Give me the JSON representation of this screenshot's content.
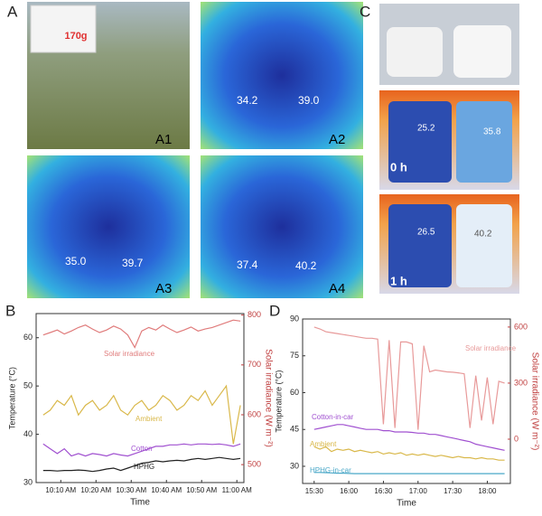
{
  "figure": {
    "panel_labels": {
      "a": "A",
      "b": "B",
      "c": "C",
      "d": "D"
    },
    "a1": {
      "label": "A1",
      "weight": "170g"
    },
    "a2": {
      "label": "A2",
      "readings": [
        "34.2",
        "39.0"
      ]
    },
    "a3": {
      "label": "A3",
      "readings": [
        "35.0",
        "39.7"
      ]
    },
    "a4": {
      "label": "A4",
      "readings": [
        "37.4",
        "40.2"
      ]
    },
    "c": {
      "images": [
        {
          "label": "0 h",
          "readings": [
            "25.2",
            "35.8"
          ]
        },
        {
          "label": "1 h",
          "readings": [
            "26.5",
            "40.2"
          ]
        }
      ]
    }
  },
  "chart_data": [
    {
      "type": "line",
      "x_label": "Time",
      "y_label": "Temperature (°C)",
      "y2_label": "Solar irradiance (W m⁻²)",
      "x": [
        605,
        607,
        609,
        611,
        613,
        615,
        617,
        619,
        621,
        623,
        625,
        627,
        629,
        631,
        633,
        635,
        637,
        639,
        641,
        643,
        645,
        647,
        649,
        651,
        653,
        655,
        657,
        659,
        661
      ],
      "xlim": [
        603,
        662
      ],
      "xticks": [
        {
          "value": 610,
          "label": "10:10 AM"
        },
        {
          "value": 620,
          "label": "10:20 AM"
        },
        {
          "value": 630,
          "label": "10:30 AM"
        },
        {
          "value": 640,
          "label": "10:40 AM"
        },
        {
          "value": 650,
          "label": "10:50 AM"
        },
        {
          "value": 660,
          "label": "11:00 AM"
        }
      ],
      "ylim": [
        30,
        65
      ],
      "yticks": [
        30,
        40,
        50,
        60
      ],
      "y2lim": [
        464,
        803
      ],
      "y2ticks": [
        500,
        600,
        700,
        800
      ],
      "series": [
        {
          "name": "Solar irradiance",
          "color": "#e07c7c",
          "axis": "y2",
          "values": [
            760,
            765,
            770,
            762,
            768,
            775,
            780,
            772,
            765,
            770,
            778,
            772,
            760,
            735,
            768,
            775,
            770,
            780,
            772,
            765,
            770,
            776,
            768,
            772,
            775,
            780,
            785,
            790,
            788
          ]
        },
        {
          "name": "Ambient",
          "color": "#d9b84a",
          "values": [
            44,
            45,
            47,
            46,
            48,
            44,
            46,
            47,
            45,
            46,
            48,
            45,
            44,
            46,
            47,
            45,
            46,
            48,
            47,
            45,
            46,
            48,
            47,
            49,
            46,
            48,
            50,
            38,
            46
          ]
        },
        {
          "name": "Cotton",
          "color": "#a050d0",
          "values": [
            38,
            37,
            36,
            37,
            35.5,
            36,
            35.5,
            36,
            35.8,
            35.5,
            36,
            35.7,
            35.5,
            36,
            36.5,
            37,
            37.5,
            37.5,
            37.8,
            37.8,
            38,
            37.8,
            38,
            38,
            37.9,
            38,
            37.8,
            37.5,
            38
          ]
        },
        {
          "name": "HPHG",
          "color": "#222222",
          "values": [
            32.5,
            32.5,
            32.4,
            32.5,
            32.5,
            32.6,
            32.5,
            32.3,
            32.5,
            32.8,
            33,
            32.5,
            33,
            33.5,
            34,
            34.2,
            34.5,
            34.3,
            34.5,
            34.6,
            34.5,
            34.8,
            35,
            34.8,
            35,
            35.2,
            35,
            34.8,
            35
          ]
        }
      ]
    },
    {
      "type": "line",
      "x_label": "Time",
      "y_label": "Temperature (°C)",
      "y2_label": "Solar irradiance (W m⁻²)",
      "x": [
        930,
        935,
        940,
        945,
        950,
        955,
        960,
        965,
        970,
        975,
        980,
        985,
        990,
        995,
        1000,
        1005,
        1010,
        1015,
        1020,
        1025,
        1030,
        1035,
        1040,
        1045,
        1050,
        1055,
        1060,
        1065,
        1070,
        1075,
        1080,
        1085,
        1090,
        1095
      ],
      "xlim": [
        920,
        1100
      ],
      "xticks": [
        {
          "value": 930,
          "label": "15:30"
        },
        {
          "value": 960,
          "label": "16:00"
        },
        {
          "value": 990,
          "label": "16:30"
        },
        {
          "value": 1020,
          "label": "17:00"
        },
        {
          "value": 1050,
          "label": "17:30"
        },
        {
          "value": 1080,
          "label": "18:00"
        }
      ],
      "ylim": [
        23,
        90
      ],
      "yticks": [
        30,
        45,
        60,
        75,
        90
      ],
      "y2lim": [
        -237,
        643
      ],
      "y2ticks": [
        0,
        300,
        600
      ],
      "series": [
        {
          "name": "Solar irradiance",
          "color": "#e89a9a",
          "axis": "y2",
          "values": [
            600,
            590,
            575,
            570,
            565,
            560,
            555,
            550,
            545,
            540,
            540,
            535,
            80,
            530,
            60,
            520,
            520,
            510,
            50,
            500,
            360,
            370,
            365,
            360,
            358,
            355,
            350,
            60,
            340,
            100,
            330,
            80,
            310,
            300
          ]
        },
        {
          "name": "Cotton-in-car",
          "color": "#a050d0",
          "values": [
            45,
            45.5,
            46,
            46.5,
            47,
            47,
            46.5,
            46,
            45.5,
            45,
            45,
            45,
            44.5,
            44.5,
            44,
            44,
            44,
            43.8,
            43.5,
            43.5,
            43,
            43,
            42.5,
            42,
            41.5,
            41,
            40.5,
            40,
            39,
            38.5,
            38,
            37.5,
            37,
            36.5
          ]
        },
        {
          "name": "Ambient",
          "color": "#d9b84a",
          "values": [
            38,
            37,
            38,
            36,
            37,
            36.5,
            37,
            36,
            36.5,
            36,
            35.5,
            36,
            35,
            35.5,
            35,
            35.5,
            34.5,
            35,
            34.5,
            35,
            34.5,
            34,
            34.5,
            34,
            33.5,
            34,
            33.5,
            33.5,
            33,
            33.5,
            33,
            33,
            32.5,
            32.5
          ]
        },
        {
          "name": "HPHG-in-car",
          "color": "#4aa8c8",
          "values": [
            27.5,
            27.5,
            27.4,
            27.3,
            27.2,
            27.2,
            27.1,
            27,
            27,
            27,
            27,
            27,
            27,
            27,
            27,
            27,
            27,
            27,
            27,
            27,
            27,
            27,
            27,
            27,
            27,
            27,
            27,
            27,
            27,
            27,
            27,
            27,
            27,
            27
          ]
        }
      ]
    }
  ]
}
